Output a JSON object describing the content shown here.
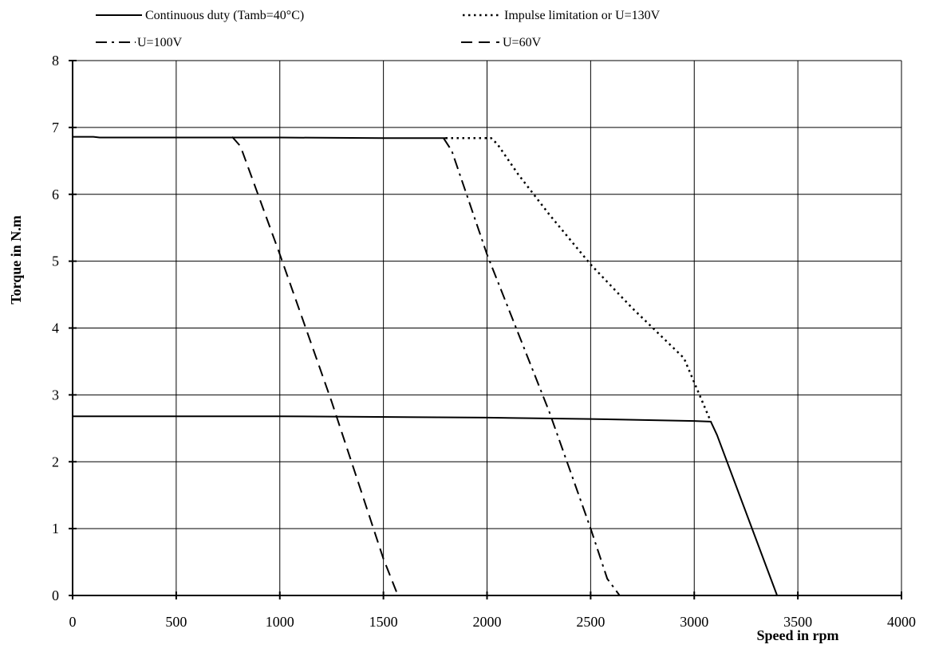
{
  "chart_data": {
    "type": "line",
    "title": "",
    "xlabel": "Speed in rpm",
    "ylabel": "Torque in N.m",
    "xlim": [
      0,
      4000
    ],
    "ylim": [
      0,
      8
    ],
    "x_ticks": [
      0,
      500,
      1000,
      1500,
      2000,
      2500,
      3000,
      3500,
      4000
    ],
    "y_ticks": [
      0,
      1,
      2,
      3,
      4,
      5,
      6,
      7,
      8
    ],
    "x_tick_labels": [
      "0",
      "500",
      "1000",
      "1500",
      "2000",
      "2500",
      "3000",
      "3500",
      "4000"
    ],
    "y_tick_labels": [
      "0",
      "1",
      "2",
      "3",
      "4",
      "5",
      "6",
      "7",
      "8"
    ],
    "grid": true,
    "legend_position": "top",
    "legend": [
      {
        "name": "Continuous duty (Tamb=40°C)",
        "style": "solid"
      },
      {
        "name": "Impulse limitation or U=130V",
        "style": "dotted"
      },
      {
        "name": "U=100V",
        "style": "dashdot"
      },
      {
        "name": "U=60V",
        "style": "dashed"
      }
    ],
    "series": [
      {
        "name": "Continuous duty (Tamb=40°C)",
        "style": "solid",
        "points": [
          [
            0,
            2.68
          ],
          [
            1000,
            2.68
          ],
          [
            2000,
            2.66
          ],
          [
            2500,
            2.64
          ],
          [
            3000,
            2.61
          ],
          [
            3080,
            2.6
          ],
          [
            3110,
            2.4
          ],
          [
            3400,
            0
          ],
          [
            4000,
            0
          ]
        ]
      },
      {
        "name": "Impulse limitation or U=130V",
        "style": "solid",
        "points": [
          [
            0,
            6.86
          ],
          [
            100,
            6.86
          ],
          [
            130,
            6.85
          ],
          [
            1000,
            6.85
          ],
          [
            1500,
            6.84
          ],
          [
            1800,
            6.84
          ]
        ]
      },
      {
        "name": "Impulse limitation or U=130V",
        "style": "dotted",
        "points": [
          [
            1800,
            6.84
          ],
          [
            2020,
            6.84
          ],
          [
            2050,
            6.75
          ],
          [
            2150,
            6.3
          ],
          [
            2300,
            5.7
          ],
          [
            2500,
            4.95
          ],
          [
            2700,
            4.3
          ],
          [
            2950,
            3.55
          ],
          [
            3080,
            2.6
          ]
        ]
      },
      {
        "name": "U=100V",
        "style": "dashdot",
        "points": [
          [
            1790,
            6.84
          ],
          [
            1830,
            6.65
          ],
          [
            2000,
            5.1
          ],
          [
            2300,
            2.75
          ],
          [
            2500,
            1.0
          ],
          [
            2580,
            0.25
          ],
          [
            2640,
            0
          ]
        ]
      },
      {
        "name": "U=60V",
        "style": "dashed",
        "points": [
          [
            770,
            6.86
          ],
          [
            810,
            6.72
          ],
          [
            1000,
            5.1
          ],
          [
            1250,
            2.9
          ],
          [
            1500,
            0.55
          ],
          [
            1570,
            0
          ]
        ]
      }
    ]
  }
}
